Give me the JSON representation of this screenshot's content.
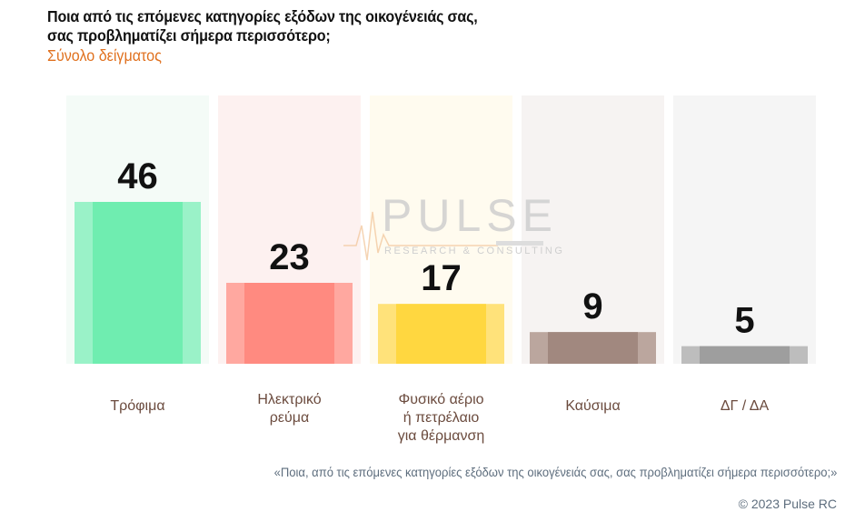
{
  "header": {
    "title_line1": "Ποια από τις επόμενες κατηγορίες εξόδων της οικογένειάς σας,",
    "title_line2": "σας προβληματίζει σήμερα περισσότερο;",
    "subtitle": "Σύνολο δείγματος"
  },
  "watermark": {
    "brand": "PULSE",
    "tagline": "RESEARCH & CONSULTING"
  },
  "chart_data": {
    "type": "bar",
    "title": "Ποια από τις επόμενες κατηγορίες εξόδων της οικογένειάς σας, σας προβληματίζει σήμερα περισσότερο;",
    "categories": [
      "Τρόφιμα",
      "Ηλεκτρικό ρεύμα",
      "Φυσικό αέριο ή πετρέλαιο για θέρμανση",
      "Καύσιμα",
      "ΔΓ / ΔΑ"
    ],
    "category_lines": [
      [
        "Τρόφιμα"
      ],
      [
        "Ηλεκτρικό",
        "ρεύμα"
      ],
      [
        "Φυσικό αέριο",
        "ή πετρέλαιο",
        "για θέρμανση"
      ],
      [
        "Καύσιμα"
      ],
      [
        "ΔΓ / ΔΑ"
      ]
    ],
    "values": [
      46,
      23,
      17,
      9,
      5
    ],
    "colors": [
      "#6FEDB0",
      "#FF8A80",
      "#FFD740",
      "#A1887F",
      "#9E9E9E"
    ],
    "edge_colors": [
      "#9AF2C8",
      "#FFA8A0",
      "#FFE27A",
      "#BBA69E",
      "#BDBDBD"
    ],
    "column_backgrounds": [
      "#F4FBF7",
      "#FDF1F0",
      "#FFFBEF",
      "#F6F3F2",
      "#F5F5F5"
    ],
    "ylim": [
      0,
      50
    ],
    "data_labels": true,
    "grid": false
  },
  "footer": {
    "question": "«Ποια, από τις επόμενες κατηγορίες εξόδων της οικογένειάς σας, σας προβληματίζει σήμερα περισσότερο;»",
    "copyright": "© 2023 Pulse RC"
  }
}
